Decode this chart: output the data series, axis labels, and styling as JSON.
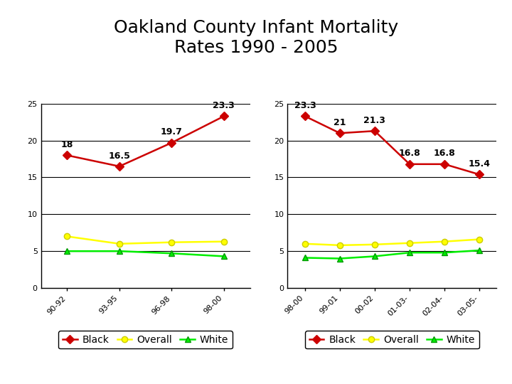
{
  "title": "Oakland County Infant Mortality\nRates 1990 - 2005",
  "title_fontsize": 18,
  "title_fontweight": "normal",
  "left_chart": {
    "x_labels": [
      "90-92",
      "93-95",
      "96-98",
      "98-00"
    ],
    "black": [
      18.0,
      16.5,
      19.7,
      23.3
    ],
    "black_labels": [
      "18",
      "16.5",
      "19.7",
      "23.3"
    ],
    "overall": [
      7.0,
      6.0,
      6.2,
      6.3
    ],
    "white": [
      5.0,
      5.0,
      4.7,
      4.3
    ],
    "ylim": [
      0,
      25
    ],
    "yticks": [
      0,
      5,
      10,
      15,
      20,
      25
    ]
  },
  "right_chart": {
    "x_labels": [
      "98-00",
      "99-01",
      "00-02",
      "01-03-",
      "02-04-",
      "03-05-"
    ],
    "black": [
      23.3,
      21.0,
      21.3,
      16.8,
      16.8,
      15.4
    ],
    "black_labels": [
      "23.3",
      "21",
      "21.3",
      "16.8",
      "16.8",
      "15.4"
    ],
    "overall": [
      6.0,
      5.8,
      5.9,
      6.1,
      6.3,
      6.6
    ],
    "white": [
      4.1,
      4.0,
      4.3,
      4.8,
      4.8,
      5.1
    ],
    "ylim": [
      0,
      25
    ],
    "yticks": [
      0,
      5,
      10,
      15,
      20,
      25
    ]
  },
  "black_color": "#cc0000",
  "overall_color": "#ffff00",
  "white_color": "#00ee00",
  "marker_black": "D",
  "marker_other": "o",
  "marker_size": 6,
  "line_width": 1.8,
  "annotation_fontsize": 9,
  "annotation_fontweight": "bold",
  "tick_label_fontsize": 8,
  "legend_fontsize": 10,
  "bg_color": "#ffffff",
  "grid_color": "#000000",
  "grid_lw": 0.8
}
